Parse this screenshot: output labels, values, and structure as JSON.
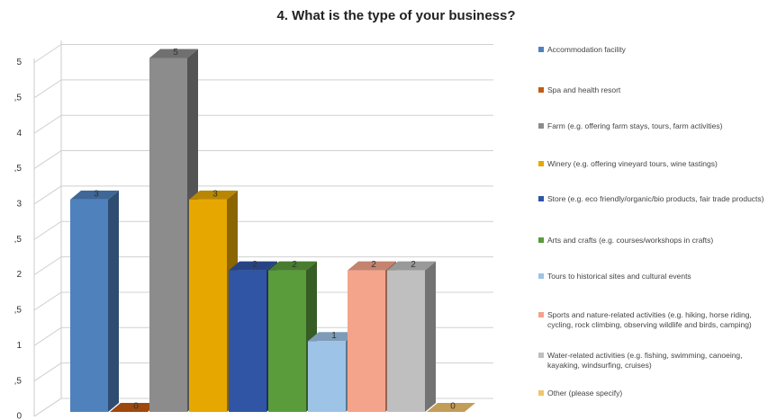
{
  "chart_data": {
    "type": "bar3d",
    "title": "4. What is the type of your business?",
    "ylim": [
      0,
      5
    ],
    "yticks": [
      0,
      {
        "value": 0.5,
        "label": ",5"
      },
      1,
      {
        "value": 1.5,
        "label": ",5"
      },
      2,
      {
        "value": 2.5,
        "label": ",5"
      },
      3,
      {
        "value": 3.5,
        "label": ",5"
      },
      4,
      {
        "value": 4.5,
        "label": ",5"
      },
      5
    ],
    "grid": true,
    "series": [
      {
        "name": "Accommodation facility",
        "color": "#4f81bd",
        "values": [
          3
        ]
      },
      {
        "name": "Spa and health resort",
        "color": "#c55a11",
        "values": [
          0
        ]
      },
      {
        "name": "Farm (e.g. offering farm stays, tours, farm activities)",
        "color": "#8c8c8c",
        "values": [
          5
        ]
      },
      {
        "name": "Winery (e.g. offering vineyard tours, wine tastings)",
        "color": "#e6a800",
        "values": [
          3
        ]
      },
      {
        "name": "Store (e.g. eco friendly/organic/bio products, fair trade products)",
        "color": "#2f55a4",
        "values": [
          2
        ]
      },
      {
        "name": "Arts and crafts (e.g. courses/workshops in crafts)",
        "color": "#5a9b3b",
        "values": [
          2
        ]
      },
      {
        "name": "Tours to historical sites and cultural events",
        "color": "#9dc3e6",
        "values": [
          1
        ]
      },
      {
        "name": "Sports and nature-related activities (e.g. hiking, horse riding, cycling, rock climbing, observing wildlife and birds, camping)",
        "color": "#f4a48a",
        "values": [
          2
        ]
      },
      {
        "name": "Water-related activities (e.g. fishing, swimming, canoeing, kayaking, windsurfing, cruises)",
        "color": "#bfbfbf",
        "values": [
          2
        ]
      },
      {
        "name": "Other (please specify)",
        "color": "#f2c46d",
        "values": [
          0
        ]
      }
    ]
  }
}
